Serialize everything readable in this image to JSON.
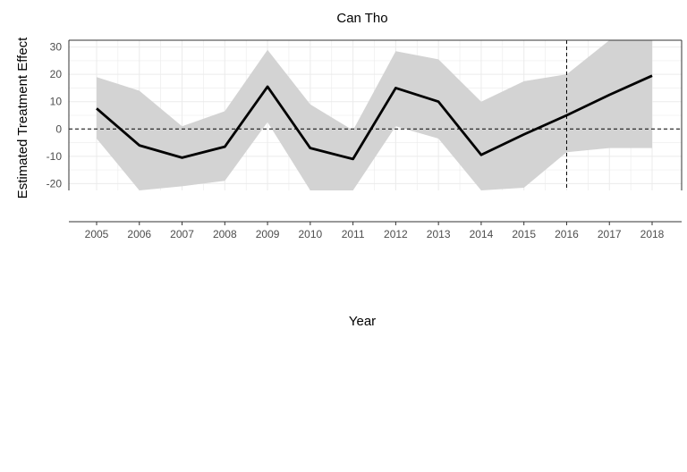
{
  "chart_data": {
    "type": "line",
    "title": "Can Tho",
    "xlabel": "Year",
    "ylabel": "Estimated Treatment Effect",
    "x": [
      2005,
      2006,
      2007,
      2008,
      2009,
      2010,
      2011,
      2012,
      2013,
      2014,
      2015,
      2016,
      2017,
      2018
    ],
    "series": [
      {
        "values": [
          7.5,
          -6,
          -10.5,
          -6.5,
          15.5,
          -7,
          -11,
          15,
          10,
          -9.5,
          -2,
          5,
          12.5,
          19.5
        ],
        "lower": [
          -3.5,
          -22.5,
          -21,
          -19,
          2.5,
          -22.5,
          -22.5,
          1,
          -3.5,
          -22.5,
          -21.5,
          -8.5,
          -7,
          -7
        ],
        "upper": [
          19,
          14,
          1,
          6.5,
          29,
          9,
          -0.5,
          28.5,
          25.5,
          10,
          17.5,
          20,
          32.5,
          32.5
        ]
      }
    ],
    "ylim": [
      -22.5,
      32.5
    ],
    "yticks": [
      -20,
      -10,
      0,
      10,
      20,
      30
    ],
    "reference_lines": {
      "y": 0,
      "x": 2016
    },
    "grid": true,
    "legend": "none",
    "colors": {
      "line": "#000000",
      "band": "#d3d3d3",
      "grid": "#ebebeb",
      "reference": "#000000"
    }
  }
}
